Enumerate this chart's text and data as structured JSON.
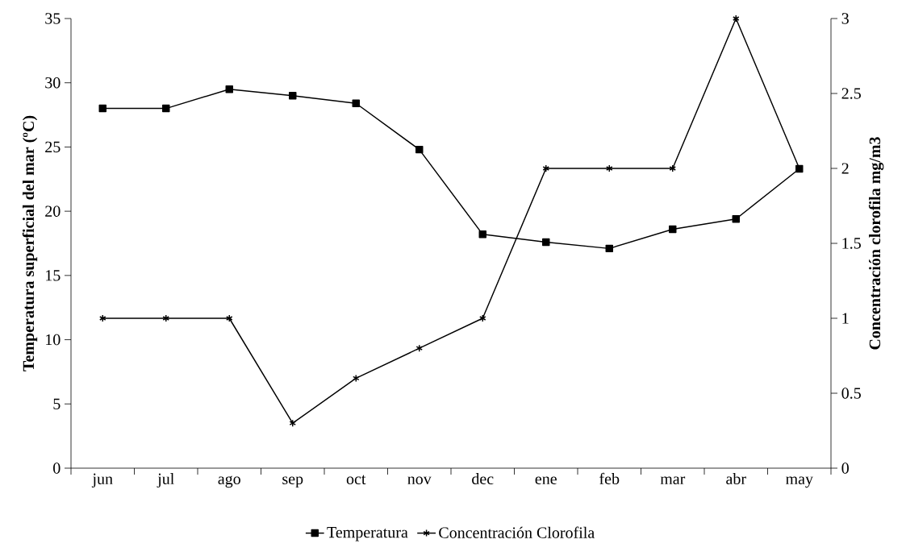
{
  "chart_data": {
    "type": "line",
    "categories": [
      "jun",
      "jul",
      "ago",
      "sep",
      "oct",
      "nov",
      "dec",
      "ene",
      "feb",
      "mar",
      "abr",
      "may"
    ],
    "ylabel": "Temperatura superficial del mar (ºC)",
    "y2label": "Concentración clorofila mg/m3",
    "series": [
      {
        "name": "Temperatura",
        "color": "#000000",
        "marker": "square",
        "values": [
          28,
          28,
          29.5,
          29,
          28.4,
          24.8,
          18.2,
          17.6,
          17.1,
          18.6,
          19.4,
          23.3
        ]
      },
      {
        "name": "Concentración Clorofila",
        "color": "#000000",
        "marker": "cross",
        "axis": "y2",
        "values": [
          1,
          1,
          1,
          0.3,
          0.6,
          0.8,
          1,
          2,
          2,
          2,
          3,
          2
        ]
      }
    ],
    "ylim": [
      0,
      35
    ],
    "yticks": [
      0,
      5,
      10,
      15,
      20,
      25,
      30,
      35
    ],
    "y2lim": [
      0,
      3
    ],
    "y2ticks": [
      0,
      0.5,
      1,
      1.5,
      2,
      2.5,
      3
    ],
    "line_style": "solid",
    "legend": "bottom"
  }
}
